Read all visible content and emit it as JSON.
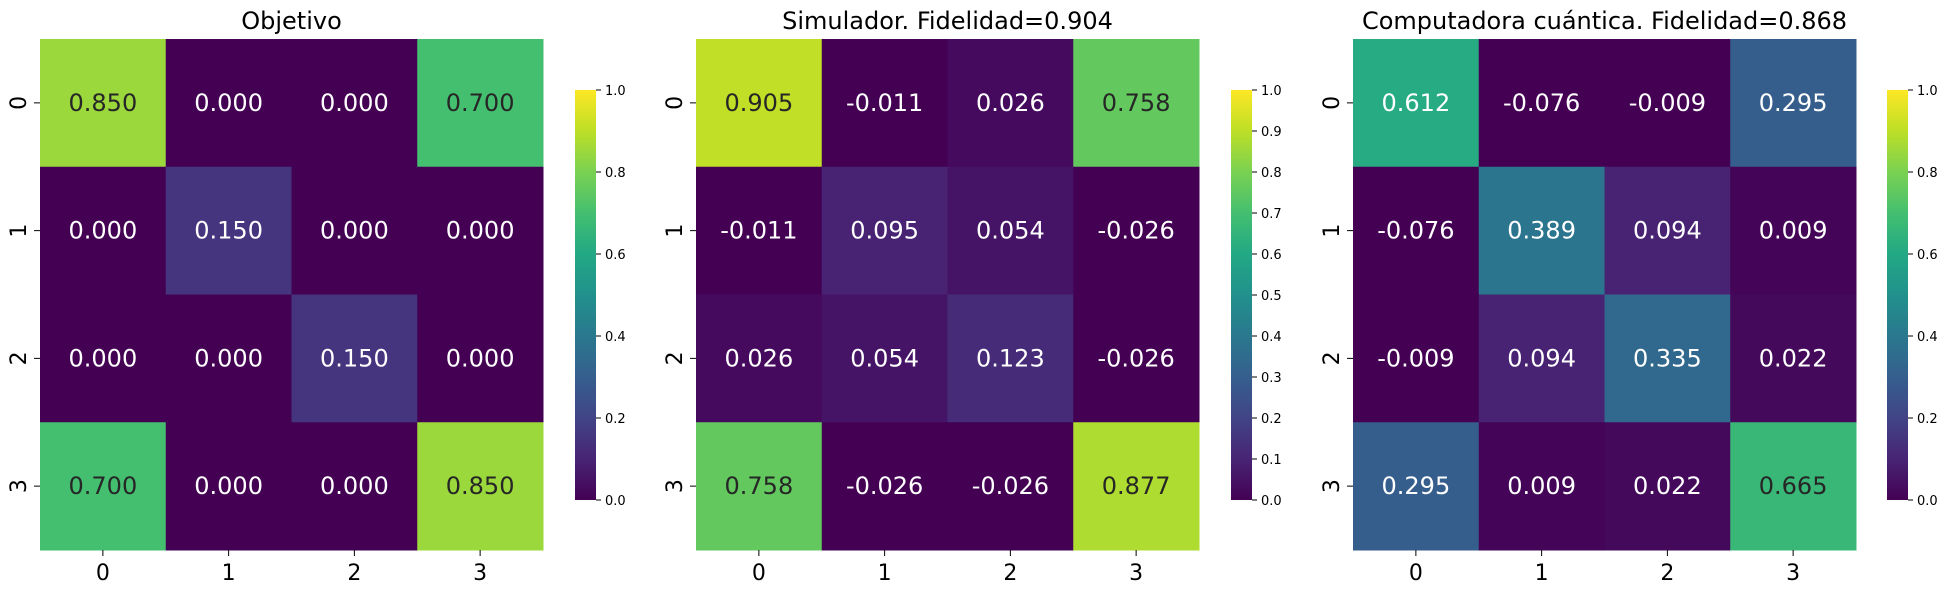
{
  "chart_data": [
    {
      "type": "heatmap",
      "title": "Objetivo",
      "x_categories": [
        "0",
        "1",
        "2",
        "3"
      ],
      "y_categories": [
        "0",
        "1",
        "2",
        "3"
      ],
      "values": [
        [
          0.85,
          0.0,
          0.0,
          0.7
        ],
        [
          0.0,
          0.15,
          0.0,
          0.0
        ],
        [
          0.0,
          0.0,
          0.15,
          0.0
        ],
        [
          0.7,
          0.0,
          0.0,
          0.85
        ]
      ],
      "labels": [
        [
          "0.850",
          "0.000",
          "0.000",
          "0.700"
        ],
        [
          "0.000",
          "0.150",
          "0.000",
          "0.000"
        ],
        [
          "0.000",
          "0.000",
          "0.150",
          "0.000"
        ],
        [
          "0.700",
          "0.000",
          "0.000",
          "0.850"
        ]
      ],
      "colormap": "viridis",
      "vmin": 0.0,
      "vmax": 1.0,
      "colorbar_ticks": [
        "0.0",
        "0.2",
        "0.4",
        "0.6",
        "0.8",
        "1.0"
      ]
    },
    {
      "type": "heatmap",
      "title": "Simulador.  Fidelidad=0.904",
      "x_categories": [
        "0",
        "1",
        "2",
        "3"
      ],
      "y_categories": [
        "0",
        "1",
        "2",
        "3"
      ],
      "values": [
        [
          0.905,
          -0.011,
          0.026,
          0.758
        ],
        [
          -0.011,
          0.095,
          0.054,
          -0.026
        ],
        [
          0.026,
          0.054,
          0.123,
          -0.026
        ],
        [
          0.758,
          -0.026,
          -0.026,
          0.877
        ]
      ],
      "labels": [
        [
          "0.905",
          "-0.011",
          "0.026",
          "0.758"
        ],
        [
          "-0.011",
          "0.095",
          "0.054",
          "-0.026"
        ],
        [
          "0.026",
          "0.054",
          "0.123",
          "-0.026"
        ],
        [
          "0.758",
          "-0.026",
          "-0.026",
          "0.877"
        ]
      ],
      "colormap": "viridis",
      "vmin": 0.0,
      "vmax": 1.0,
      "colorbar_ticks": [
        "0.0",
        "0.1",
        "0.2",
        "0.3",
        "0.4",
        "0.5",
        "0.6",
        "0.7",
        "0.8",
        "0.9",
        "1.0"
      ]
    },
    {
      "type": "heatmap",
      "title": "Computadora cuántica. Fidelidad=0.868",
      "x_categories": [
        "0",
        "1",
        "2",
        "3"
      ],
      "y_categories": [
        "0",
        "1",
        "2",
        "3"
      ],
      "values": [
        [
          0.612,
          -0.076,
          -0.009,
          0.295
        ],
        [
          -0.076,
          0.389,
          0.094,
          0.009
        ],
        [
          -0.009,
          0.094,
          0.335,
          0.022
        ],
        [
          0.295,
          0.009,
          0.022,
          0.665
        ]
      ],
      "labels": [
        [
          "0.612",
          "-0.076",
          "-0.009",
          "0.295"
        ],
        [
          "-0.076",
          "0.389",
          "0.094",
          "0.009"
        ],
        [
          "-0.009",
          "0.094",
          "0.335",
          "0.022"
        ],
        [
          "0.295",
          "0.009",
          "0.022",
          "0.665"
        ]
      ],
      "colormap": "viridis",
      "vmin": 0.0,
      "vmax": 1.0,
      "colorbar_ticks": [
        "0.0",
        "0.2",
        "0.4",
        "0.6",
        "0.8",
        "1.0"
      ]
    }
  ]
}
